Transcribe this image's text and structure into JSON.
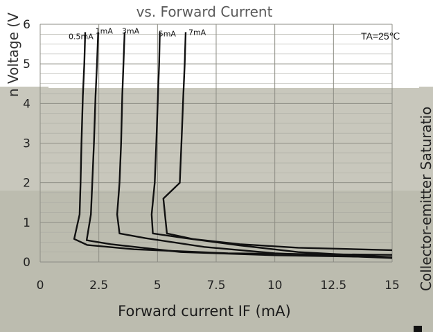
{
  "chart_data": {
    "type": "line",
    "title": "vs. Forward Current",
    "xlabel": "Forward current IF (mA)",
    "ylabel_left": "n Voltage (V",
    "ylabel_right": "Collector-emitter Saturatio",
    "annotation": "TA=25℃",
    "xlim": [
      0,
      15
    ],
    "ylim": [
      0,
      6
    ],
    "xticks": [
      "0",
      "2.5",
      "5",
      "7.5",
      "10",
      "12.5",
      "15"
    ],
    "yticks": [
      "0",
      "1",
      "2",
      "3",
      "4",
      "5",
      "6"
    ],
    "grid": true,
    "series": [
      {
        "name": "0.5mA",
        "points": [
          [
            1.92,
            5.8
          ],
          [
            1.88,
            5.0
          ],
          [
            1.82,
            4.2
          ],
          [
            1.76,
            3.0
          ],
          [
            1.72,
            2.0
          ],
          [
            1.68,
            1.2
          ],
          [
            1.45,
            0.58
          ],
          [
            2.0,
            0.43
          ],
          [
            4.0,
            0.32
          ],
          [
            8.0,
            0.22
          ],
          [
            15,
            0.18
          ]
        ]
      },
      {
        "name": "1mA",
        "points": [
          [
            2.47,
            5.8
          ],
          [
            2.42,
            5.0
          ],
          [
            2.36,
            4.2
          ],
          [
            2.29,
            3.0
          ],
          [
            2.22,
            2.0
          ],
          [
            2.16,
            1.2
          ],
          [
            1.98,
            0.55
          ],
          [
            3.0,
            0.45
          ],
          [
            6.0,
            0.25
          ],
          [
            10.0,
            0.17
          ],
          [
            15,
            0.12
          ]
        ]
      },
      {
        "name": "3mA",
        "points": [
          [
            3.6,
            5.8
          ],
          [
            3.55,
            5.0
          ],
          [
            3.5,
            4.2
          ],
          [
            3.45,
            3.0
          ],
          [
            3.38,
            2.0
          ],
          [
            3.28,
            1.2
          ],
          [
            3.38,
            0.72
          ],
          [
            4.5,
            0.6
          ],
          [
            7.0,
            0.38
          ],
          [
            10.0,
            0.22
          ],
          [
            15,
            0.1
          ]
        ]
      },
      {
        "name": "5mA",
        "points": [
          [
            5.1,
            5.8
          ],
          [
            5.07,
            5.0
          ],
          [
            5.02,
            4.2
          ],
          [
            4.95,
            3.0
          ],
          [
            4.88,
            2.0
          ],
          [
            4.75,
            1.2
          ],
          [
            4.8,
            0.72
          ],
          [
            6.2,
            0.6
          ],
          [
            8.5,
            0.42
          ],
          [
            11.0,
            0.25
          ],
          [
            15,
            0.12
          ]
        ]
      },
      {
        "name": "7mA",
        "points": [
          [
            6.2,
            5.8
          ],
          [
            6.16,
            5.0
          ],
          [
            6.1,
            4.2
          ],
          [
            6.02,
            3.0
          ],
          [
            5.95,
            2.0
          ],
          [
            5.25,
            1.6
          ],
          [
            5.4,
            0.72
          ],
          [
            6.5,
            0.58
          ],
          [
            8.5,
            0.45
          ],
          [
            11.0,
            0.36
          ],
          [
            15,
            0.3
          ]
        ]
      }
    ]
  }
}
